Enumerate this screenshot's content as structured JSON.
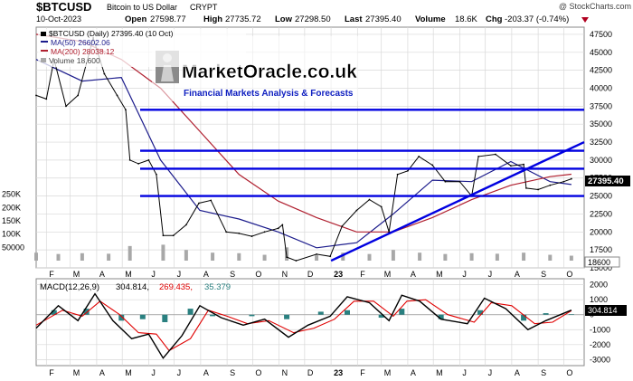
{
  "header": {
    "symbol": "$BTCUSD",
    "name": "Bitcoin to US Dollar",
    "type": "CRYPT",
    "date": "10-Oct-2023",
    "open_label": "Open",
    "open": "27598.77",
    "high_label": "High",
    "high": "27735.72",
    "low_label": "Low",
    "low": "27298.50",
    "last_label": "Last",
    "last": "27395.40",
    "volume_label": "Volume",
    "volume": "18.6K",
    "chg_label": "Chg",
    "chg": "-203.37 (-0.74%)",
    "credit": "@ StockCharts.com"
  },
  "watermark": {
    "brand": "MarketOracle.co.uk",
    "tagline": "Financial Markets Analysis & Forecasts"
  },
  "legend": {
    "price": "$BTCUSD (Daily) 27395.40 (10 Oct)",
    "ma50": "MA(50) 26602.06",
    "ma200": "MA(200) 28038.12",
    "volume": "Volume 18,600"
  },
  "colors": {
    "price": "#000000",
    "ma50": "#1c1c8c",
    "ma200": "#b02030",
    "trendline": "#0000e0",
    "volume": "#a8a8a8",
    "macd_line": "#000000",
    "signal_line": "#e00000",
    "histogram": "#2a8080",
    "grid": "#d8d8d8"
  },
  "chart_data": [
    {
      "type": "line",
      "title": "$BTCUSD (Daily) 27395.40 (10 Oct)",
      "x_ticks": [
        "F",
        "M",
        "A",
        "M",
        "J",
        "J",
        "A",
        "S",
        "O",
        "N",
        "D",
        "23",
        "F",
        "M",
        "A",
        "M",
        "J",
        "J",
        "A",
        "S",
        "O"
      ],
      "y_ticks": [
        "47500",
        "45000",
        "42500",
        "40000",
        "37500",
        "35000",
        "32500",
        "30000",
        "27500",
        "25000",
        "22500",
        "20000",
        "17500",
        "15000"
      ],
      "volume_ticks": [
        "250K",
        "200K",
        "150K",
        "100K",
        "50000"
      ],
      "ylim": [
        15000,
        48500
      ],
      "last_price_label": "27395.40",
      "volume_label_box": "18600",
      "series": [
        {
          "name": "$BTCUSD",
          "x": [
            "2022-01-20",
            "2022-02-01",
            "2022-02-10",
            "2022-02-24",
            "2022-03-10",
            "2022-03-28",
            "2022-04-10",
            "2022-04-25",
            "2022-05-05",
            "2022-05-10",
            "2022-05-20",
            "2022-06-01",
            "2022-06-10",
            "2022-06-18",
            "2022-06-30",
            "2022-07-15",
            "2022-07-30",
            "2022-08-13",
            "2022-08-31",
            "2022-09-15",
            "2022-09-30",
            "2022-10-15",
            "2022-10-31",
            "2022-11-05",
            "2022-11-10",
            "2022-11-21",
            "2022-12-15",
            "2022-12-31",
            "2023-01-14",
            "2023-01-31",
            "2023-02-15",
            "2023-03-01",
            "2023-03-10",
            "2023-03-20",
            "2023-04-01",
            "2023-04-14",
            "2023-04-30",
            "2023-05-15",
            "2023-06-01",
            "2023-06-15",
            "2023-06-23",
            "2023-07-13",
            "2023-07-31",
            "2023-08-15",
            "2023-08-18",
            "2023-09-01",
            "2023-09-15",
            "2023-10-01",
            "2023-10-10"
          ],
          "y": [
            39000,
            38500,
            44000,
            37500,
            39000,
            47000,
            42000,
            39000,
            37000,
            30000,
            29500,
            30000,
            28000,
            19500,
            19500,
            21000,
            24000,
            24400,
            20000,
            19800,
            19400,
            20000,
            20500,
            21000,
            16500,
            16000,
            16900,
            16600,
            20800,
            23000,
            24500,
            23500,
            20000,
            28000,
            28500,
            30500,
            29300,
            27000,
            27000,
            25000,
            30500,
            30800,
            29200,
            29400,
            26100,
            25900,
            26500,
            27000,
            27395
          ]
        },
        {
          "name": "MA(50)",
          "x": [
            "2022-01-20",
            "2022-03-15",
            "2022-04-30",
            "2022-06-15",
            "2022-07-31",
            "2022-09-15",
            "2022-10-31",
            "2022-12-15",
            "2023-01-31",
            "2023-03-15",
            "2023-04-30",
            "2023-06-15",
            "2023-07-31",
            "2023-09-15",
            "2023-10-10"
          ],
          "y": [
            44000,
            41000,
            41500,
            30000,
            23000,
            21800,
            20000,
            17800,
            18500,
            22500,
            27200,
            27000,
            29800,
            27000,
            26602
          ]
        },
        {
          "name": "MA(200)",
          "x": [
            "2022-01-20",
            "2022-03-15",
            "2022-04-30",
            "2022-06-15",
            "2022-07-31",
            "2022-09-15",
            "2022-10-31",
            "2022-12-15",
            "2023-01-31",
            "2023-03-15",
            "2023-04-30",
            "2023-06-15",
            "2023-07-31",
            "2023-09-15",
            "2023-10-10"
          ],
          "y": [
            47500,
            46500,
            44000,
            40000,
            34000,
            28000,
            24300,
            22000,
            20000,
            20000,
            22000,
            24500,
            26500,
            27700,
            28038
          ]
        }
      ],
      "annotations": [
        {
          "kind": "horizontal",
          "y": 37000
        },
        {
          "kind": "horizontal",
          "y": 31300
        },
        {
          "kind": "horizontal",
          "y": 28800
        },
        {
          "kind": "horizontal",
          "y": 25000
        },
        {
          "kind": "trendline",
          "x": [
            "2023-01-01",
            "2023-10-25"
          ],
          "y": [
            16000,
            32500
          ]
        }
      ],
      "volume": {
        "x": [
          "2022-01-20",
          "2022-02-15",
          "2022-03-15",
          "2022-04-15",
          "2022-05-10",
          "2022-06-18",
          "2022-07-15",
          "2022-08-15",
          "2022-09-15",
          "2022-10-15",
          "2022-11-10",
          "2022-12-15",
          "2023-01-15",
          "2023-02-15",
          "2023-03-15",
          "2023-04-15",
          "2023-05-15",
          "2023-06-15",
          "2023-07-15",
          "2023-08-15",
          "2023-09-15",
          "2023-10-10"
        ],
        "y": [
          30000,
          25000,
          28000,
          26000,
          55000,
          60000,
          40000,
          30000,
          28000,
          22000,
          50000,
          20000,
          30000,
          25000,
          40000,
          30000,
          25000,
          28000,
          26000,
          30000,
          22000,
          18600
        ]
      }
    },
    {
      "type": "line",
      "title": "MACD(12,26,9) 304.814, 269.435, 35.379",
      "legend_label": "MACD(12,26,9)",
      "values_text": [
        "304.814,",
        "269.435,",
        "35.379"
      ],
      "y_ticks": [
        "2000",
        "1000",
        "0",
        "-1000",
        "-2000",
        "-3000"
      ],
      "ylim": [
        -3400,
        2400
      ],
      "last_value_label": "304.814",
      "series": [
        {
          "name": "MACD",
          "x": [
            "2022-01-20",
            "2022-02-15",
            "2022-03-10",
            "2022-03-30",
            "2022-04-20",
            "2022-05-12",
            "2022-06-01",
            "2022-06-18",
            "2022-07-10",
            "2022-07-31",
            "2022-08-25",
            "2022-09-20",
            "2022-10-15",
            "2022-11-12",
            "2022-12-05",
            "2022-12-31",
            "2023-01-20",
            "2023-02-15",
            "2023-03-10",
            "2023-03-25",
            "2023-04-15",
            "2023-05-10",
            "2023-06-10",
            "2023-06-30",
            "2023-07-25",
            "2023-08-20",
            "2023-09-10",
            "2023-10-10"
          ],
          "y": [
            -900,
            600,
            -400,
            1400,
            -400,
            -1600,
            -1300,
            -2900,
            -1400,
            600,
            -200,
            -700,
            -300,
            -1500,
            -700,
            -100,
            1200,
            800,
            -400,
            1300,
            900,
            -300,
            -600,
            1100,
            400,
            -1000,
            -400,
            305
          ]
        },
        {
          "name": "Signal",
          "x": [
            "2022-01-20",
            "2022-02-20",
            "2022-03-15",
            "2022-04-05",
            "2022-04-28",
            "2022-05-20",
            "2022-06-10",
            "2022-06-25",
            "2022-07-20",
            "2022-08-10",
            "2022-09-01",
            "2022-09-25",
            "2022-10-20",
            "2022-11-18",
            "2022-12-12",
            "2023-01-05",
            "2023-01-28",
            "2023-02-20",
            "2023-03-15",
            "2023-03-31",
            "2023-04-22",
            "2023-05-18",
            "2023-06-18",
            "2023-07-08",
            "2023-08-01",
            "2023-08-28",
            "2023-09-18",
            "2023-10-10"
          ],
          "y": [
            -700,
            300,
            -100,
            900,
            0,
            -1200,
            -1300,
            -2400,
            -1600,
            300,
            -100,
            -600,
            -400,
            -1200,
            -900,
            -300,
            900,
            900,
            -100,
            900,
            1000,
            0,
            -500,
            800,
            600,
            -600,
            -500,
            269
          ]
        }
      ],
      "histogram": {
        "x": [
          "2022-02-10",
          "2022-03-20",
          "2022-04-30",
          "2022-05-25",
          "2022-06-20",
          "2022-07-20",
          "2022-08-15",
          "2022-09-30",
          "2022-11-10",
          "2022-12-20",
          "2023-01-20",
          "2023-03-01",
          "2023-03-25",
          "2023-05-10",
          "2023-06-25",
          "2023-08-15",
          "2023-09-10",
          "2023-10-10"
        ],
        "y": [
          300,
          400,
          -400,
          -300,
          -500,
          400,
          -100,
          -100,
          -300,
          200,
          300,
          -200,
          400,
          -300,
          300,
          -400,
          100,
          35
        ]
      }
    }
  ]
}
